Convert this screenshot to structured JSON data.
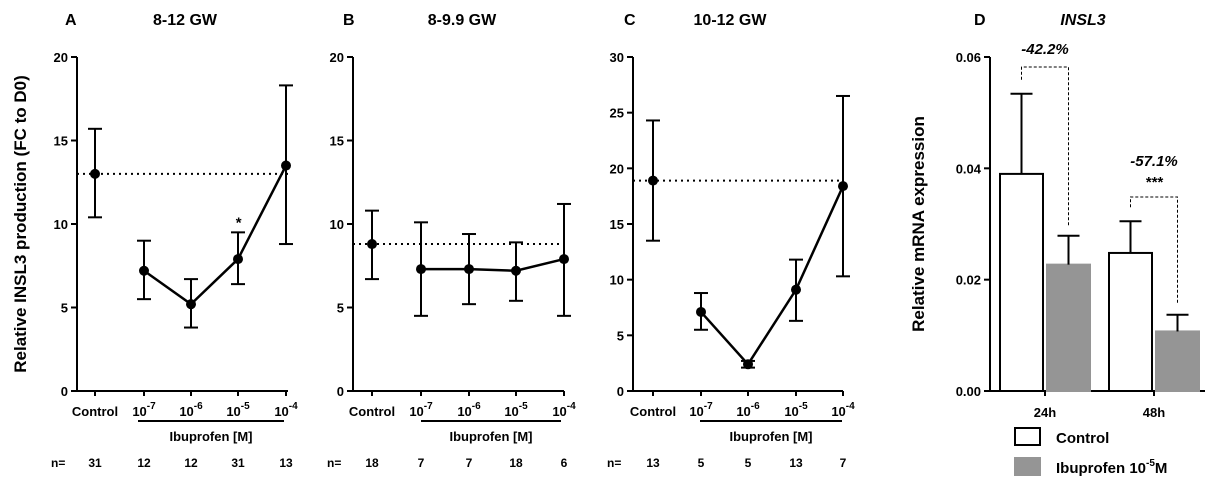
{
  "chart_data": [
    {
      "panel": "A",
      "type": "line",
      "title": "8-12 GW",
      "ylabel": "Relative INSL3 production (FC to D0)",
      "ylim": [
        0,
        20
      ],
      "yticks": [
        "0",
        "5",
        "10",
        "15",
        "20"
      ],
      "categories": [
        "Control",
        "10-7",
        "10-6",
        "10-5",
        "10-4"
      ],
      "bracket_label": "Ibuprofen [M]",
      "control": {
        "value": 13.0,
        "err_low": 10.4,
        "err_high": 15.7
      },
      "series": [
        {
          "x": "10-7",
          "value": 7.2,
          "err_low": 5.5,
          "err_high": 9.0
        },
        {
          "x": "10-6",
          "value": 5.2,
          "err_low": 3.8,
          "err_high": 6.7
        },
        {
          "x": "10-5",
          "value": 7.9,
          "err_low": 6.4,
          "err_high": 9.5
        },
        {
          "x": "10-4",
          "value": 13.5,
          "err_low": 8.8,
          "err_high": 18.3
        }
      ],
      "reference_line": 13.0,
      "annotations": [
        {
          "x": "10-5",
          "text": "*"
        }
      ],
      "n_label": "n=",
      "n": [
        "31",
        "12",
        "12",
        "31",
        "13"
      ]
    },
    {
      "panel": "B",
      "type": "line",
      "title": "8-9.9 GW",
      "ylim": [
        0,
        20
      ],
      "yticks": [
        "0",
        "5",
        "10",
        "15",
        "20"
      ],
      "categories": [
        "Control",
        "10-7",
        "10-6",
        "10-5",
        "10-4"
      ],
      "bracket_label": "Ibuprofen [M]",
      "control": {
        "value": 8.8,
        "err_low": 6.7,
        "err_high": 10.8
      },
      "series": [
        {
          "x": "10-7",
          "value": 7.3,
          "err_low": 4.5,
          "err_high": 10.1
        },
        {
          "x": "10-6",
          "value": 7.3,
          "err_low": 5.2,
          "err_high": 9.4
        },
        {
          "x": "10-5",
          "value": 7.2,
          "err_low": 5.4,
          "err_high": 8.9
        },
        {
          "x": "10-4",
          "value": 7.9,
          "err_low": 4.5,
          "err_high": 11.2
        }
      ],
      "reference_line": 8.8,
      "annotations": [],
      "n_label": "n=",
      "n": [
        "18",
        "7",
        "7",
        "18",
        "6"
      ]
    },
    {
      "panel": "C",
      "type": "line",
      "title": "10-12 GW",
      "ylim": [
        0,
        30
      ],
      "yticks": [
        "0",
        "5",
        "10",
        "15",
        "20",
        "25",
        "30"
      ],
      "categories": [
        "Control",
        "10-7",
        "10-6",
        "10-5",
        "10-4"
      ],
      "bracket_label": "Ibuprofen [M]",
      "control": {
        "value": 18.9,
        "err_low": 13.5,
        "err_high": 24.3
      },
      "series": [
        {
          "x": "10-7",
          "value": 7.1,
          "err_low": 5.5,
          "err_high": 8.8
        },
        {
          "x": "10-6",
          "value": 2.4,
          "err_low": 2.1,
          "err_high": 2.7
        },
        {
          "x": "10-5",
          "value": 9.1,
          "err_low": 6.3,
          "err_high": 11.8
        },
        {
          "x": "10-4",
          "value": 18.4,
          "err_low": 10.3,
          "err_high": 26.5
        }
      ],
      "reference_line": 18.9,
      "annotations": [],
      "n_label": "n=",
      "n": [
        "13",
        "5",
        "5",
        "13",
        "7"
      ]
    },
    {
      "panel": "D",
      "type": "bar",
      "title": "INSL3",
      "ylabel": "Relative mRNA expression",
      "ylim": [
        0,
        0.06
      ],
      "yticks": [
        "0.00",
        "0.02",
        "0.04",
        "0.06"
      ],
      "categories": [
        "24h",
        "48h"
      ],
      "series": [
        {
          "name": "Control",
          "values": [
            0.039,
            0.0248
          ],
          "err_high": [
            0.0534,
            0.0305
          ],
          "color": "#ffffff"
        },
        {
          "name": "Ibuprofen 10-5M",
          "values": [
            0.0227,
            0.0107
          ],
          "err_high": [
            0.0279,
            0.0137
          ],
          "color": "#959595"
        }
      ],
      "annotations": [
        {
          "category": "24h",
          "text": "-42.2%",
          "sig": ""
        },
        {
          "category": "48h",
          "text": "-57.1%",
          "sig": "***"
        }
      ],
      "legend": {
        "position": "bottom"
      }
    }
  ]
}
